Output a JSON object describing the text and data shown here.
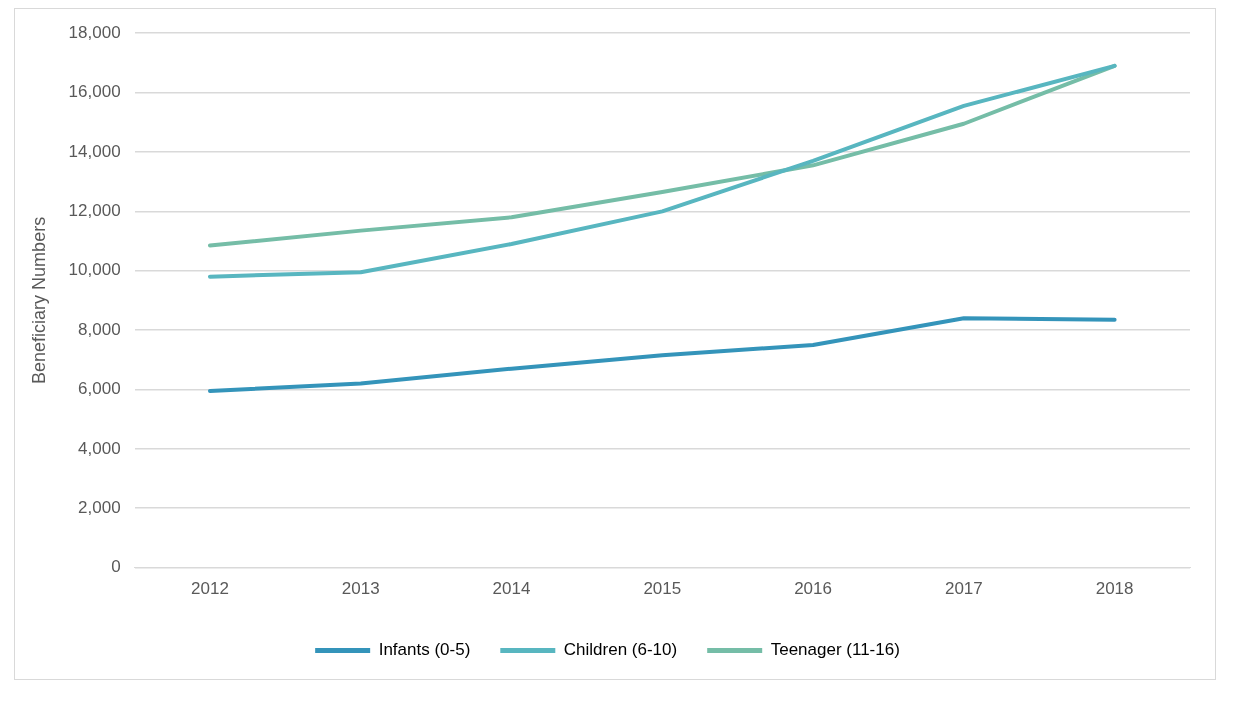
{
  "chart_data": {
    "type": "line",
    "ylabel": "Beneficiary Numbers",
    "categories": [
      "2012",
      "2013",
      "2014",
      "2015",
      "2016",
      "2017",
      "2018"
    ],
    "series": [
      {
        "name": "Infants (0-5)",
        "color": "#3494ba",
        "values": [
          5950,
          6200,
          6700,
          7150,
          7500,
          8400,
          8350
        ]
      },
      {
        "name": "Children (6-10)",
        "color": "#58b6c0",
        "values": [
          9800,
          9950,
          10900,
          12000,
          13700,
          15550,
          16900
        ]
      },
      {
        "name": "Teenager (11-16)",
        "color": "#75bda7",
        "values": [
          10850,
          11350,
          11800,
          12650,
          13550,
          14950,
          16900
        ]
      }
    ],
    "ylim": [
      0,
      18000
    ],
    "yticks": [
      0,
      {
        "value": 2000,
        "label": "2,000"
      },
      {
        "value": 4000,
        "label": "4,000"
      },
      {
        "value": 6000,
        "label": "6,000"
      },
      {
        "value": 8000,
        "label": "8,000"
      },
      {
        "value": 10000,
        "label": "10,000"
      },
      {
        "value": 12000,
        "label": "12,000"
      },
      {
        "value": 14000,
        "label": "14,000"
      },
      {
        "value": 16000,
        "label": "16,000"
      },
      {
        "value": 18000,
        "label": "18,000"
      }
    ],
    "grid": "y",
    "legend": "bottom",
    "marker": "none",
    "line_style": "solid"
  }
}
